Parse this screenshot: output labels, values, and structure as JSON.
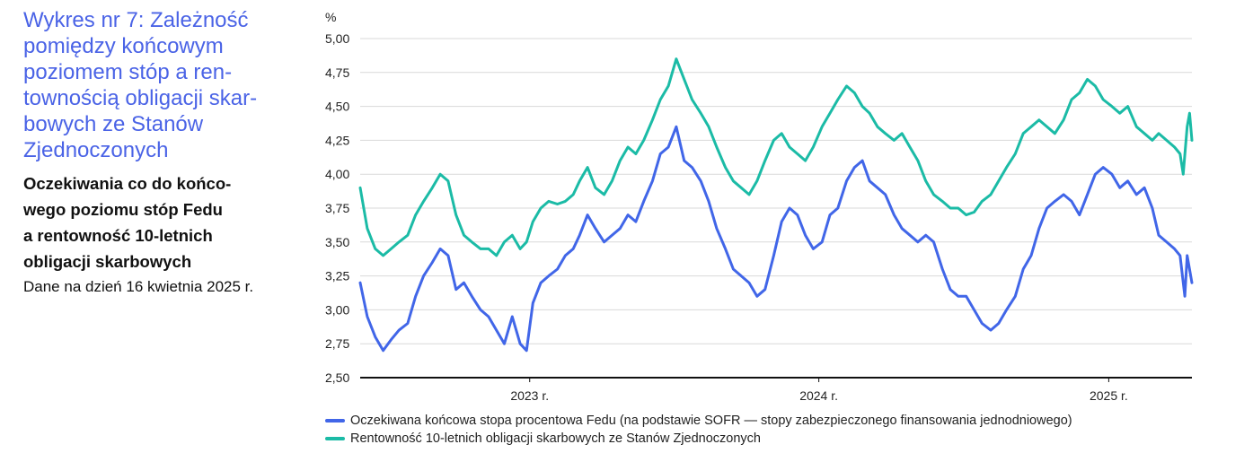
{
  "header": {
    "title": "Wykres nr 7: Zależność\npomiędzy końcowym\npoziomem stóp a ren-\ntownością obligacji skar-\nbowych ze Stanów\nZjednoczonych",
    "subtitle": "Oczekiwania co do końco-\nwego poziomu stóp Fedu\na rentowność 10-letnich\nobligacji skarbowych",
    "note": "Dane na dzień 16 kwietnia 2025 r."
  },
  "colors": {
    "fed": "#4166e8",
    "ust": "#1bbba6",
    "grid": "#d9d9d9",
    "axis": "#111111"
  },
  "chart_data": {
    "type": "line",
    "ylabel": "%",
    "ylim": [
      2.5,
      5.0
    ],
    "yticks": [
      "5,00",
      "4,75",
      "4,50",
      "4,25",
      "4,00",
      "3,75",
      "3,50",
      "3,25",
      "3,00",
      "2,75",
      "2,50"
    ],
    "xlim": [
      "2022-06-01",
      "2025-04-16"
    ],
    "xticks": [
      {
        "label": "2023 r.",
        "date": "2023-01-01"
      },
      {
        "label": "2024 r.",
        "date": "2024-01-01"
      },
      {
        "label": "2025 r.",
        "date": "2025-01-01"
      }
    ],
    "series": [
      {
        "name": "Oczekiwana końcowa stopa procentowa Fedu (na podstawie SOFR — stopy zabezpieczonego finansowania jednodniowego)",
        "color": "#4166e8",
        "points": [
          [
            "2022-06-01",
            3.2
          ],
          [
            "2022-06-10",
            2.95
          ],
          [
            "2022-06-20",
            2.8
          ],
          [
            "2022-06-30",
            2.7
          ],
          [
            "2022-07-10",
            2.78
          ],
          [
            "2022-07-20",
            2.85
          ],
          [
            "2022-07-31",
            2.9
          ],
          [
            "2022-08-10",
            3.1
          ],
          [
            "2022-08-20",
            3.25
          ],
          [
            "2022-08-31",
            3.35
          ],
          [
            "2022-09-10",
            3.45
          ],
          [
            "2022-09-20",
            3.4
          ],
          [
            "2022-09-30",
            3.15
          ],
          [
            "2022-10-10",
            3.2
          ],
          [
            "2022-10-20",
            3.1
          ],
          [
            "2022-10-31",
            3.0
          ],
          [
            "2022-11-10",
            2.95
          ],
          [
            "2022-11-20",
            2.85
          ],
          [
            "2022-11-30",
            2.75
          ],
          [
            "2022-12-10",
            2.95
          ],
          [
            "2022-12-20",
            2.75
          ],
          [
            "2022-12-28",
            2.7
          ],
          [
            "2023-01-05",
            3.05
          ],
          [
            "2023-01-15",
            3.2
          ],
          [
            "2023-01-25",
            3.25
          ],
          [
            "2023-02-05",
            3.3
          ],
          [
            "2023-02-15",
            3.4
          ],
          [
            "2023-02-25",
            3.45
          ],
          [
            "2023-03-05",
            3.55
          ],
          [
            "2023-03-15",
            3.7
          ],
          [
            "2023-03-25",
            3.6
          ],
          [
            "2023-04-05",
            3.5
          ],
          [
            "2023-04-15",
            3.55
          ],
          [
            "2023-04-25",
            3.6
          ],
          [
            "2023-05-05",
            3.7
          ],
          [
            "2023-05-15",
            3.65
          ],
          [
            "2023-05-25",
            3.8
          ],
          [
            "2023-06-05",
            3.95
          ],
          [
            "2023-06-15",
            4.15
          ],
          [
            "2023-06-25",
            4.2
          ],
          [
            "2023-07-05",
            4.35
          ],
          [
            "2023-07-15",
            4.1
          ],
          [
            "2023-07-25",
            4.05
          ],
          [
            "2023-08-05",
            3.95
          ],
          [
            "2023-08-15",
            3.8
          ],
          [
            "2023-08-25",
            3.6
          ],
          [
            "2023-09-05",
            3.45
          ],
          [
            "2023-09-15",
            3.3
          ],
          [
            "2023-09-25",
            3.25
          ],
          [
            "2023-10-05",
            3.2
          ],
          [
            "2023-10-15",
            3.1
          ],
          [
            "2023-10-25",
            3.15
          ],
          [
            "2023-11-05",
            3.4
          ],
          [
            "2023-11-15",
            3.65
          ],
          [
            "2023-11-25",
            3.75
          ],
          [
            "2023-12-05",
            3.7
          ],
          [
            "2023-12-15",
            3.55
          ],
          [
            "2023-12-25",
            3.45
          ],
          [
            "2024-01-05",
            3.5
          ],
          [
            "2024-01-15",
            3.7
          ],
          [
            "2024-01-25",
            3.75
          ],
          [
            "2024-02-05",
            3.95
          ],
          [
            "2024-02-15",
            4.05
          ],
          [
            "2024-02-25",
            4.1
          ],
          [
            "2024-03-05",
            3.95
          ],
          [
            "2024-03-15",
            3.9
          ],
          [
            "2024-03-25",
            3.85
          ],
          [
            "2024-04-05",
            3.7
          ],
          [
            "2024-04-15",
            3.6
          ],
          [
            "2024-04-25",
            3.55
          ],
          [
            "2024-05-05",
            3.5
          ],
          [
            "2024-05-15",
            3.55
          ],
          [
            "2024-05-25",
            3.5
          ],
          [
            "2024-06-05",
            3.3
          ],
          [
            "2024-06-15",
            3.15
          ],
          [
            "2024-06-25",
            3.1
          ],
          [
            "2024-07-05",
            3.1
          ],
          [
            "2024-07-15",
            3.0
          ],
          [
            "2024-07-25",
            2.9
          ],
          [
            "2024-08-05",
            2.85
          ],
          [
            "2024-08-15",
            2.9
          ],
          [
            "2024-08-25",
            3.0
          ],
          [
            "2024-09-05",
            3.1
          ],
          [
            "2024-09-15",
            3.3
          ],
          [
            "2024-09-25",
            3.4
          ],
          [
            "2024-10-05",
            3.6
          ],
          [
            "2024-10-15",
            3.75
          ],
          [
            "2024-10-25",
            3.8
          ],
          [
            "2024-11-05",
            3.85
          ],
          [
            "2024-11-15",
            3.8
          ],
          [
            "2024-11-25",
            3.7
          ],
          [
            "2024-12-05",
            3.85
          ],
          [
            "2024-12-15",
            4.0
          ],
          [
            "2024-12-25",
            4.05
          ],
          [
            "2025-01-05",
            4.0
          ],
          [
            "2025-01-15",
            3.9
          ],
          [
            "2025-01-25",
            3.95
          ],
          [
            "2025-02-05",
            3.85
          ],
          [
            "2025-02-15",
            3.9
          ],
          [
            "2025-02-25",
            3.75
          ],
          [
            "2025-03-05",
            3.55
          ],
          [
            "2025-03-15",
            3.5
          ],
          [
            "2025-03-25",
            3.45
          ],
          [
            "2025-04-01",
            3.4
          ],
          [
            "2025-04-07",
            3.1
          ],
          [
            "2025-04-10",
            3.4
          ],
          [
            "2025-04-16",
            3.2
          ]
        ]
      },
      {
        "name": "Rentowność 10-letnich obligacji skarbowych ze Stanów Zjednoczonych",
        "color": "#1bbba6",
        "points": [
          [
            "2022-06-01",
            3.9
          ],
          [
            "2022-06-10",
            3.6
          ],
          [
            "2022-06-20",
            3.45
          ],
          [
            "2022-06-30",
            3.4
          ],
          [
            "2022-07-10",
            3.45
          ],
          [
            "2022-07-20",
            3.5
          ],
          [
            "2022-07-31",
            3.55
          ],
          [
            "2022-08-10",
            3.7
          ],
          [
            "2022-08-20",
            3.8
          ],
          [
            "2022-08-31",
            3.9
          ],
          [
            "2022-09-10",
            4.0
          ],
          [
            "2022-09-20",
            3.95
          ],
          [
            "2022-09-30",
            3.7
          ],
          [
            "2022-10-10",
            3.55
          ],
          [
            "2022-10-20",
            3.5
          ],
          [
            "2022-10-31",
            3.45
          ],
          [
            "2022-11-10",
            3.45
          ],
          [
            "2022-11-20",
            3.4
          ],
          [
            "2022-11-30",
            3.5
          ],
          [
            "2022-12-10",
            3.55
          ],
          [
            "2022-12-20",
            3.45
          ],
          [
            "2022-12-28",
            3.5
          ],
          [
            "2023-01-05",
            3.65
          ],
          [
            "2023-01-15",
            3.75
          ],
          [
            "2023-01-25",
            3.8
          ],
          [
            "2023-02-05",
            3.78
          ],
          [
            "2023-02-15",
            3.8
          ],
          [
            "2023-02-25",
            3.85
          ],
          [
            "2023-03-05",
            3.95
          ],
          [
            "2023-03-15",
            4.05
          ],
          [
            "2023-03-25",
            3.9
          ],
          [
            "2023-04-05",
            3.85
          ],
          [
            "2023-04-15",
            3.95
          ],
          [
            "2023-04-25",
            4.1
          ],
          [
            "2023-05-05",
            4.2
          ],
          [
            "2023-05-15",
            4.15
          ],
          [
            "2023-05-25",
            4.25
          ],
          [
            "2023-06-05",
            4.4
          ],
          [
            "2023-06-15",
            4.55
          ],
          [
            "2023-06-25",
            4.65
          ],
          [
            "2023-07-05",
            4.85
          ],
          [
            "2023-07-15",
            4.7
          ],
          [
            "2023-07-25",
            4.55
          ],
          [
            "2023-08-05",
            4.45
          ],
          [
            "2023-08-15",
            4.35
          ],
          [
            "2023-08-25",
            4.2
          ],
          [
            "2023-09-05",
            4.05
          ],
          [
            "2023-09-15",
            3.95
          ],
          [
            "2023-09-25",
            3.9
          ],
          [
            "2023-10-05",
            3.85
          ],
          [
            "2023-10-15",
            3.95
          ],
          [
            "2023-10-25",
            4.1
          ],
          [
            "2023-11-05",
            4.25
          ],
          [
            "2023-11-15",
            4.3
          ],
          [
            "2023-11-25",
            4.2
          ],
          [
            "2023-12-05",
            4.15
          ],
          [
            "2023-12-15",
            4.1
          ],
          [
            "2023-12-25",
            4.2
          ],
          [
            "2024-01-05",
            4.35
          ],
          [
            "2024-01-15",
            4.45
          ],
          [
            "2024-01-25",
            4.55
          ],
          [
            "2024-02-05",
            4.65
          ],
          [
            "2024-02-15",
            4.6
          ],
          [
            "2024-02-25",
            4.5
          ],
          [
            "2024-03-05",
            4.45
          ],
          [
            "2024-03-15",
            4.35
          ],
          [
            "2024-03-25",
            4.3
          ],
          [
            "2024-04-05",
            4.25
          ],
          [
            "2024-04-15",
            4.3
          ],
          [
            "2024-04-25",
            4.2
          ],
          [
            "2024-05-05",
            4.1
          ],
          [
            "2024-05-15",
            3.95
          ],
          [
            "2024-05-25",
            3.85
          ],
          [
            "2024-06-05",
            3.8
          ],
          [
            "2024-06-15",
            3.75
          ],
          [
            "2024-06-25",
            3.75
          ],
          [
            "2024-07-05",
            3.7
          ],
          [
            "2024-07-15",
            3.72
          ],
          [
            "2024-07-25",
            3.8
          ],
          [
            "2024-08-05",
            3.85
          ],
          [
            "2024-08-15",
            3.95
          ],
          [
            "2024-08-25",
            4.05
          ],
          [
            "2024-09-05",
            4.15
          ],
          [
            "2024-09-15",
            4.3
          ],
          [
            "2024-09-25",
            4.35
          ],
          [
            "2024-10-05",
            4.4
          ],
          [
            "2024-10-15",
            4.35
          ],
          [
            "2024-10-25",
            4.3
          ],
          [
            "2024-11-05",
            4.4
          ],
          [
            "2024-11-15",
            4.55
          ],
          [
            "2024-11-25",
            4.6
          ],
          [
            "2024-12-05",
            4.7
          ],
          [
            "2024-12-15",
            4.65
          ],
          [
            "2024-12-25",
            4.55
          ],
          [
            "2025-01-05",
            4.5
          ],
          [
            "2025-01-15",
            4.45
          ],
          [
            "2025-01-25",
            4.5
          ],
          [
            "2025-02-05",
            4.35
          ],
          [
            "2025-02-15",
            4.3
          ],
          [
            "2025-02-25",
            4.25
          ],
          [
            "2025-03-05",
            4.3
          ],
          [
            "2025-03-15",
            4.25
          ],
          [
            "2025-03-25",
            4.2
          ],
          [
            "2025-04-01",
            4.15
          ],
          [
            "2025-04-05",
            4.0
          ],
          [
            "2025-04-10",
            4.35
          ],
          [
            "2025-04-13",
            4.45
          ],
          [
            "2025-04-16",
            4.25
          ]
        ]
      }
    ]
  }
}
